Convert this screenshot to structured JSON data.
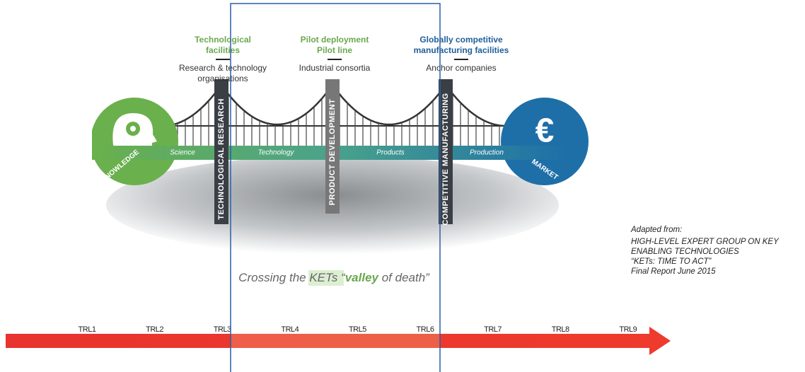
{
  "stages": [
    {
      "title": [
        "Technological",
        "facilities"
      ],
      "actor": [
        "Research & technology",
        "organisations"
      ],
      "pillar": "TECHNOLOGICAL RESEARCH"
    },
    {
      "title": [
        "Pilot deployment",
        "Pilot line"
      ],
      "actor": [
        "Industrial consortia"
      ],
      "pillar": "PRODUCT DEVELOPMENT"
    },
    {
      "title": [
        "Globally competitive",
        "manufacturing facilities"
      ],
      "actor": [
        "Anchor companies"
      ],
      "pillar": "COMPETITIVE MANUFACTURING"
    }
  ],
  "road": [
    "Science",
    "Technology",
    "Products",
    "Production"
  ],
  "left_end": "KNOWLEDGE",
  "right_end": {
    "symbol": "€",
    "label": "MARKET"
  },
  "valley": {
    "before": "Crossing the KETs “",
    "highlight": "valley",
    "after": " of death”"
  },
  "source": [
    "Adapted from:",
    "HIGH-LEVEL EXPERT GROUP ON KEY",
    "ENABLING TECHNOLOGIES",
    "“KETs: TIME TO ACT”",
    "Final Report June 2015"
  ],
  "trl": [
    "TRL1",
    "TRL2",
    "TRL3",
    "TRL4",
    "TRL5",
    "TRL6",
    "TRL7",
    "TRL8",
    "TRL9"
  ]
}
